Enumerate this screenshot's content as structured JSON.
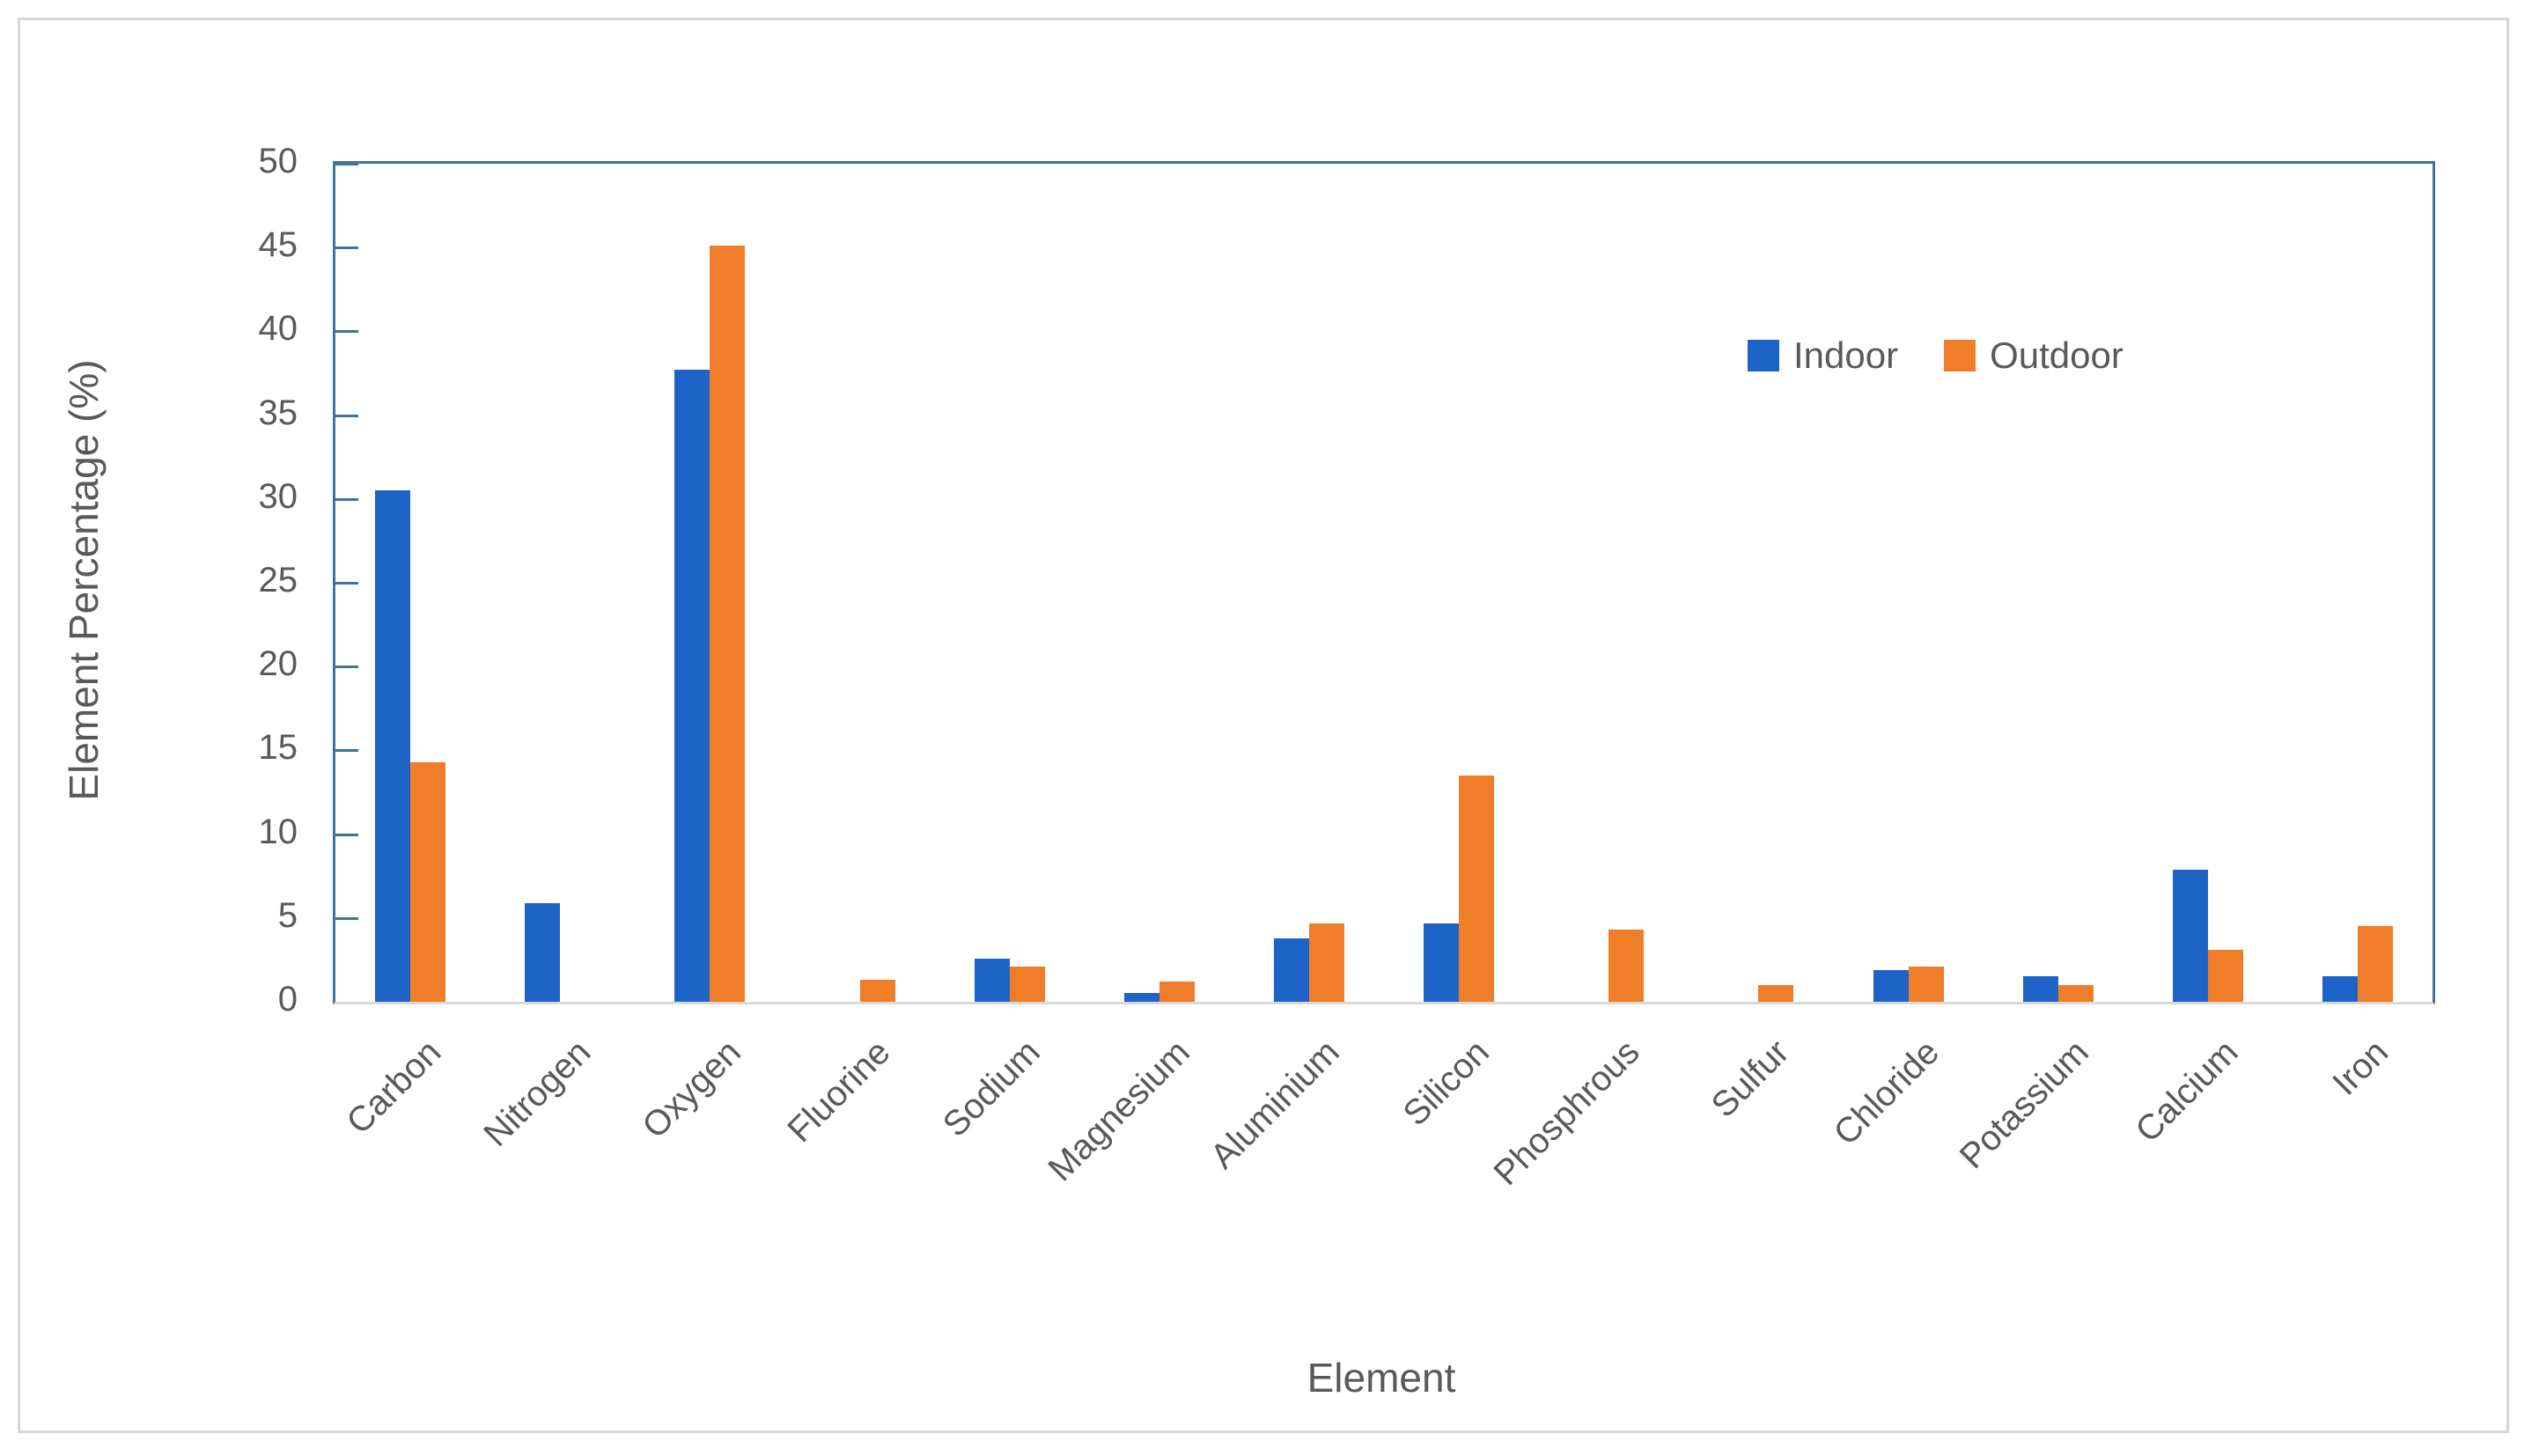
{
  "chart_data": {
    "type": "bar",
    "title": "",
    "xlabel": "Element",
    "ylabel": "Element Percentage (%)",
    "ylim": [
      0,
      50
    ],
    "ytick_step": 5,
    "yticks": [
      0,
      5,
      10,
      15,
      20,
      25,
      30,
      35,
      40,
      45,
      50
    ],
    "grid": false,
    "legend_position": "upper-right-inside",
    "categories": [
      "Carbon",
      "Nitrogen",
      "Oxygen",
      "Fluorine",
      "Sodium",
      "Magnesium",
      "Aluminium",
      "Silicon",
      "Phosphrous",
      "Sulfur",
      "Chloride",
      "Potassium",
      "Calcium",
      "Iron"
    ],
    "series": [
      {
        "name": "Indoor",
        "color": "#1E64C8",
        "values": [
          30.5,
          5.9,
          37.7,
          0,
          2.6,
          0.5,
          3.8,
          4.7,
          0,
          0,
          1.9,
          1.5,
          7.9,
          1.5
        ]
      },
      {
        "name": "Outdoor",
        "color": "#F07D28",
        "values": [
          14.3,
          0,
          45.1,
          1.3,
          2.1,
          1.2,
          4.7,
          13.5,
          4.3,
          1.0,
          2.1,
          1.0,
          3.1,
          4.5
        ]
      }
    ]
  },
  "colors": {
    "axis_frame": "#41719C",
    "baseline": "#D9D9D9",
    "text": "#595959",
    "figure_border": "#D5D7DA"
  }
}
